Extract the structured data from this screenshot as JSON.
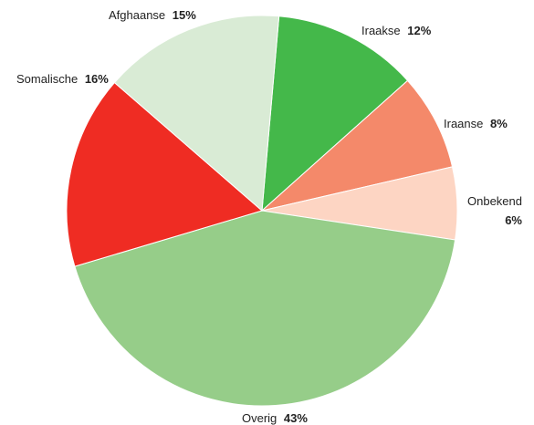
{
  "chart_data": {
    "type": "pie",
    "title": "",
    "slices": [
      {
        "label": "Iraakse",
        "pct_text": "12%",
        "value": 12,
        "color": "#44b84a"
      },
      {
        "label": "Iraanse",
        "pct_text": "8%",
        "value": 8,
        "color": "#f4896a"
      },
      {
        "label": "Onbekend",
        "pct_text": "6%",
        "value": 6,
        "color": "#fdd5c3"
      },
      {
        "label": "Overig",
        "pct_text": "43%",
        "value": 43,
        "color": "#96cd89"
      },
      {
        "label": "Somalische",
        "pct_text": "16%",
        "value": 16,
        "color": "#ef2c23"
      },
      {
        "label": "Afghaanse",
        "pct_text": "15%",
        "value": 15,
        "color": "#d9ebd5"
      }
    ]
  }
}
